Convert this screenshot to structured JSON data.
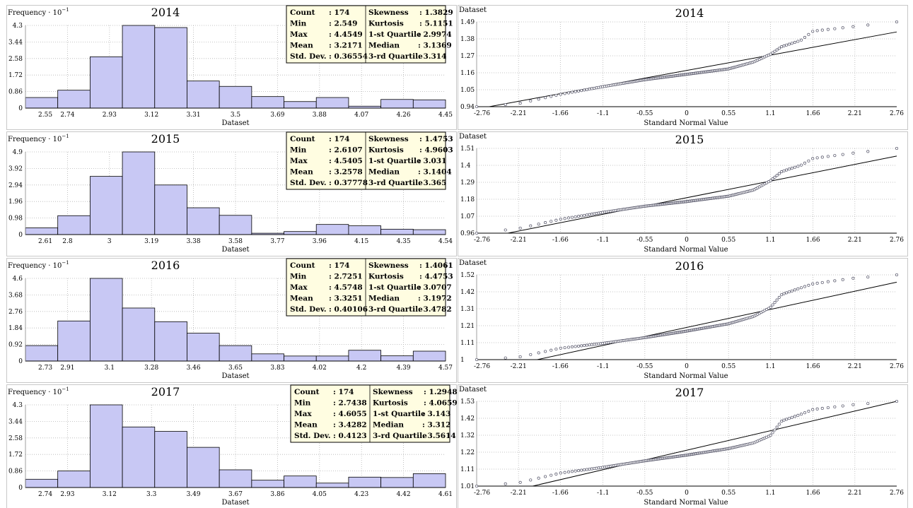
{
  "x_title_hist": "Dataset",
  "x_title_qq": "Standard Normal Value",
  "y_title_hist": "Frequency",
  "y_title_qq": "Dataset",
  "qq_xticks": [
    "-2.76",
    "-2.21",
    "-1.66",
    "-1.1",
    "-0.55",
    "0",
    "0.55",
    "1.1",
    "1.66",
    "2.21",
    "2.76"
  ],
  "colors": {
    "bar_fill": "#c8c8f4",
    "grid": "#b4b4b4",
    "stats_bg": "#fffde1",
    "qq_marker": "#505064"
  },
  "chart_data": [
    {
      "type": "bar",
      "title": "2014",
      "xlabel": "Dataset",
      "ylabel": "Frequency · 10^-1",
      "yticks": [
        "0",
        "0.86",
        "1.72",
        "2.58",
        "3.44",
        "4.3"
      ],
      "ylim": [
        0,
        4.3
      ],
      "xticks": [
        "2.55",
        "2.74",
        "2.93",
        "3.12",
        "3.31",
        "3.5",
        "3.69",
        "3.88",
        "4.07",
        "4.26",
        "4.45"
      ],
      "values": [
        0.55,
        0.93,
        2.67,
        4.3,
        4.19,
        1.41,
        1.13,
        0.6,
        0.34,
        0.55,
        0.1,
        0.45,
        0.43
      ],
      "stats": {
        "count": "174",
        "min": "2.549",
        "max": "4.4549",
        "mean": "3.2171",
        "std_dev": "0.36554",
        "skewness": "1.3829",
        "kurtosis": "5.1151",
        "q1": "2.9974",
        "median": "3.1369",
        "q3": "3.314"
      },
      "qq": {
        "type": "scatter",
        "ylabel": "Dataset",
        "xlabel": "Standard Normal Value",
        "yticks": [
          "0.94",
          "1.05",
          "1.16",
          "1.27",
          "1.38",
          "1.49"
        ],
        "ylim": [
          0.94,
          1.49
        ],
        "line": [
          -2.76,
          0.925,
          2.76,
          1.425
        ],
        "knots": [
          [
            -2.76,
            0.94
          ],
          [
            -2.21,
            0.96
          ],
          [
            -1.66,
            1.02
          ],
          [
            -1.1,
            1.07
          ],
          [
            -0.55,
            1.115
          ],
          [
            0,
            1.15
          ],
          [
            0.55,
            1.185
          ],
          [
            0.88,
            1.23
          ],
          [
            1.1,
            1.28
          ],
          [
            1.25,
            1.33
          ],
          [
            1.5,
            1.37
          ],
          [
            1.66,
            1.43
          ],
          [
            2.2,
            1.46
          ],
          [
            2.76,
            1.49
          ]
        ]
      }
    },
    {
      "type": "bar",
      "title": "2015",
      "xlabel": "Dataset",
      "ylabel": "Frequency · 10^-1",
      "yticks": [
        "0",
        "0.98",
        "1.96",
        "2.94",
        "3.92",
        "4.9"
      ],
      "ylim": [
        0,
        4.9
      ],
      "xticks": [
        "2.61",
        "2.8",
        "3",
        "3.19",
        "3.38",
        "3.58",
        "3.77",
        "3.96",
        "4.15",
        "4.35",
        "4.54"
      ],
      "values": [
        0.4,
        1.12,
        3.45,
        4.9,
        2.94,
        1.59,
        1.14,
        0.08,
        0.18,
        0.6,
        0.52,
        0.32,
        0.29
      ],
      "stats": {
        "count": "174",
        "min": "2.6107",
        "max": "4.5405",
        "mean": "3.2578",
        "std_dev": "0.37778",
        "skewness": "1.4753",
        "kurtosis": "4.9603",
        "q1": "3.031",
        "median": "3.1404",
        "q3": "3.365"
      },
      "qq": {
        "type": "scatter",
        "ylabel": "Dataset",
        "xlabel": "Standard Normal Value",
        "yticks": [
          "0.96",
          "1.07",
          "1.18",
          "1.29",
          "1.4",
          "1.51"
        ],
        "ylim": [
          0.96,
          1.51
        ],
        "line": [
          -2.76,
          0.92,
          2.76,
          1.46
        ],
        "knots": [
          [
            -2.76,
            0.96
          ],
          [
            -2.21,
            0.99
          ],
          [
            -1.66,
            1.05
          ],
          [
            -1.1,
            1.095
          ],
          [
            -0.55,
            1.135
          ],
          [
            0,
            1.165
          ],
          [
            0.55,
            1.2
          ],
          [
            0.88,
            1.24
          ],
          [
            1.1,
            1.3
          ],
          [
            1.25,
            1.36
          ],
          [
            1.5,
            1.4
          ],
          [
            1.66,
            1.445
          ],
          [
            2.2,
            1.48
          ],
          [
            2.76,
            1.51
          ]
        ]
      }
    },
    {
      "type": "bar",
      "title": "2016",
      "xlabel": "Dataset",
      "ylabel": "Frequency · 10^-1",
      "yticks": [
        "0",
        "0.92",
        "1.84",
        "2.76",
        "3.68",
        "4.6"
      ],
      "ylim": [
        0,
        4.6
      ],
      "xticks": [
        "2.73",
        "2.91",
        "3.1",
        "3.28",
        "3.46",
        "3.65",
        "3.83",
        "4.02",
        "4.2",
        "4.39",
        "4.57"
      ],
      "values": [
        0.86,
        2.23,
        4.6,
        2.95,
        2.19,
        1.55,
        0.86,
        0.4,
        0.28,
        0.28,
        0.6,
        0.29,
        0.55
      ],
      "stats": {
        "count": "174",
        "min": "2.7251",
        "max": "4.5748",
        "mean": "3.3251",
        "std_dev": "0.40106",
        "skewness": "1.4061",
        "kurtosis": "4.4753",
        "q1": "3.0707",
        "median": "3.1972",
        "q3": "3.4782"
      },
      "qq": {
        "type": "scatter",
        "ylabel": "Dataset",
        "xlabel": "Standard Normal Value",
        "yticks": [
          "1",
          "1.11",
          "1.21",
          "1.31",
          "1.42",
          "1.52"
        ],
        "ylim": [
          1.0,
          1.52
        ],
        "line": [
          -2.76,
          0.92,
          2.76,
          1.475
        ],
        "knots": [
          [
            -2.76,
            1.0
          ],
          [
            -2.21,
            1.015
          ],
          [
            -1.66,
            1.07
          ],
          [
            -1.1,
            1.1
          ],
          [
            -0.55,
            1.135
          ],
          [
            0,
            1.175
          ],
          [
            0.55,
            1.22
          ],
          [
            0.88,
            1.265
          ],
          [
            1.1,
            1.32
          ],
          [
            1.25,
            1.4
          ],
          [
            1.5,
            1.44
          ],
          [
            1.66,
            1.465
          ],
          [
            2.2,
            1.5
          ],
          [
            2.76,
            1.52
          ]
        ]
      }
    },
    {
      "type": "bar",
      "title": "2017",
      "xlabel": "Dataset",
      "ylabel": "Frequency · 10^-1",
      "yticks": [
        "0",
        "0.86",
        "1.72",
        "2.58",
        "3.44",
        "4.3"
      ],
      "ylim": [
        0,
        4.3
      ],
      "xticks": [
        "2.74",
        "2.93",
        "3.12",
        "3.3",
        "3.49",
        "3.67",
        "3.86",
        "4.05",
        "4.23",
        "4.42",
        "4.61"
      ],
      "values": [
        0.43,
        0.86,
        4.3,
        3.15,
        2.92,
        2.09,
        0.92,
        0.38,
        0.6,
        0.23,
        0.54,
        0.52,
        0.72
      ],
      "stats": {
        "count": "174",
        "min": "2.7438",
        "max": "4.6055",
        "mean": "3.4282",
        "std_dev": "0.4123",
        "skewness": "1.2948",
        "kurtosis": "4.0659",
        "q1": "3.143",
        "median": "3.312",
        "q3": "3.5614"
      },
      "qq": {
        "type": "scatter",
        "ylabel": "Dataset",
        "xlabel": "Standard Normal Value",
        "yticks": [
          "1.01",
          "1.11",
          "1.22",
          "1.32",
          "1.42",
          "1.53"
        ],
        "ylim": [
          1.01,
          1.53
        ],
        "line": [
          -2.76,
          0.93,
          2.76,
          1.53
        ],
        "knots": [
          [
            -2.76,
            1.01
          ],
          [
            -2.21,
            1.03
          ],
          [
            -1.66,
            1.09
          ],
          [
            -1.1,
            1.125
          ],
          [
            -0.55,
            1.165
          ],
          [
            0,
            1.2
          ],
          [
            0.55,
            1.24
          ],
          [
            0.88,
            1.275
          ],
          [
            1.1,
            1.32
          ],
          [
            1.25,
            1.41
          ],
          [
            1.5,
            1.45
          ],
          [
            1.66,
            1.48
          ],
          [
            2.2,
            1.51
          ],
          [
            2.76,
            1.53
          ]
        ]
      }
    }
  ]
}
